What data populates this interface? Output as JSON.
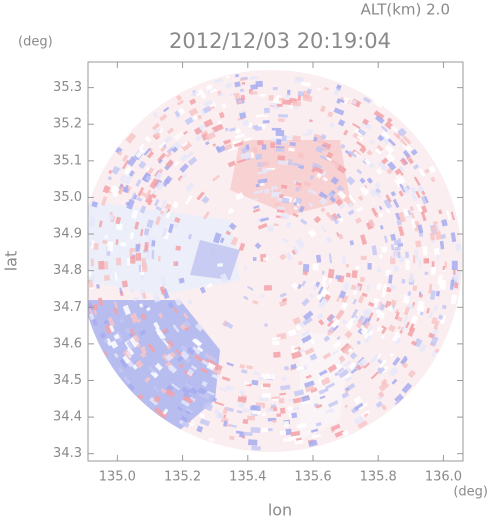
{
  "chart_data": {
    "type": "radar-map",
    "title": "2012/12/03 20:19:04",
    "subtitle": "ALT(km) 2.0",
    "x_label": "lon",
    "x_unit": "(deg)",
    "y_label": "lat",
    "y_unit": "(deg)",
    "xlim": [
      134.91,
      136.06
    ],
    "ylim": [
      34.28,
      35.37
    ],
    "xticks": [
      {
        "value": 135,
        "label": "135.0"
      },
      135.2,
      135.4,
      135.6,
      135.8,
      {
        "value": 136,
        "label": "136.0"
      }
    ],
    "yticks": [
      34.3,
      34.4,
      34.5,
      34.6,
      34.7,
      34.8,
      34.9,
      {
        "value": 35,
        "label": "35.0"
      },
      35.1,
      35.2,
      35.3
    ]
  }
}
